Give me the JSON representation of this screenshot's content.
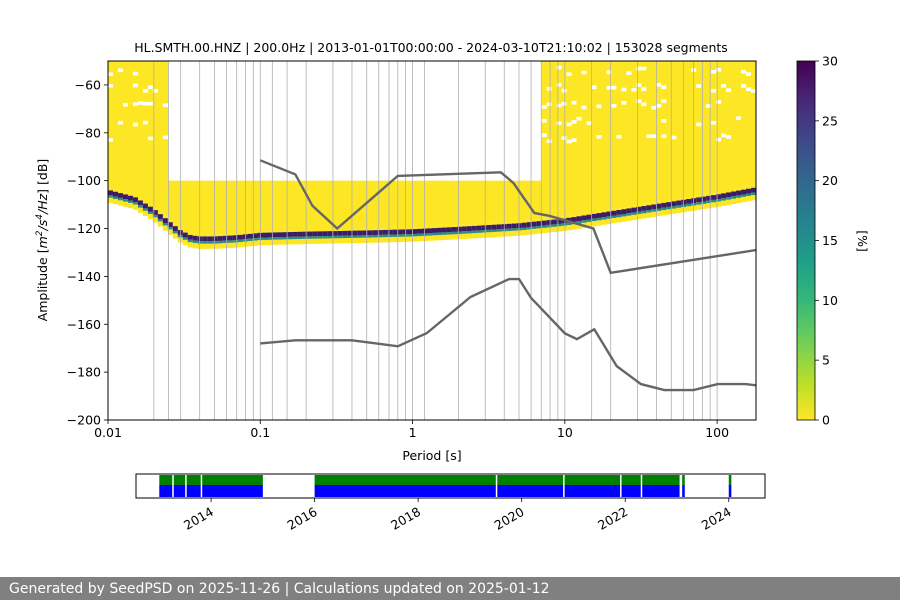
{
  "chart_data": {
    "type": "heatmap",
    "title": "HL.SMTH.00.HNZ | 200.0Hz | 2013-01-01T00:00:00 - 2024-03-10T21:10:02 | 153028 segments",
    "xlabel": "Period [s]",
    "ylabel_prefix": "Amplitude [",
    "ylabel_suffix": "] [dB]",
    "x_scale": "log",
    "xlim": [
      0.01,
      180
    ],
    "ylim": [
      -200,
      -50
    ],
    "x_ticks": [
      0.01,
      0.1,
      1,
      10,
      100
    ],
    "x_tick_labels": [
      "0.01",
      "0.1",
      "1",
      "10",
      "100"
    ],
    "y_ticks": [
      -200,
      -180,
      -160,
      -140,
      -120,
      -100,
      -80,
      -60
    ],
    "y_tick_labels": [
      "−200",
      "−180",
      "−160",
      "−140",
      "−120",
      "−100",
      "−80",
      "−60"
    ],
    "grid_periods": [
      0.02,
      0.025,
      0.03,
      0.04,
      0.05,
      0.06,
      0.07,
      0.08,
      0.09,
      0.1,
      0.12,
      0.15,
      0.2,
      0.3,
      0.4,
      0.5,
      0.6,
      0.7,
      0.8,
      0.9,
      1,
      1.2,
      2,
      3,
      4,
      5,
      6,
      7,
      8,
      9,
      10,
      15,
      20,
      30,
      40,
      50,
      60,
      70,
      80,
      90,
      100
    ],
    "psd_mode": {
      "periods": [
        0.01,
        0.015,
        0.02,
        0.025,
        0.03,
        0.035,
        0.04,
        0.05,
        0.07,
        0.1,
        0.2,
        0.5,
        1,
        2,
        5,
        10,
        20,
        50,
        100,
        180
      ],
      "db": [
        -105,
        -108,
        -113,
        -118,
        -122,
        -124,
        -124.5,
        -124.5,
        -124,
        -123,
        -122.5,
        -122,
        -121.5,
        -120.5,
        -119,
        -117,
        -114,
        -110,
        -107,
        -104
      ]
    },
    "nhnm": {
      "periods": [
        0.1,
        0.17,
        0.22,
        0.32,
        0.8,
        3.8,
        4.6,
        6.3,
        7.9,
        15.4,
        20,
        180
      ],
      "db": [
        -91.5,
        -97.4,
        -110.5,
        -120,
        -98,
        -96.5,
        -101,
        -113.5,
        -114.7,
        -120,
        -138.5,
        -129
      ]
    },
    "nlnm": {
      "periods": [
        0.1,
        0.17,
        0.4,
        0.8,
        1.24,
        2.4,
        4.3,
        5,
        6,
        10,
        12,
        15.6,
        21.9,
        31.6,
        45,
        70,
        101,
        154,
        180
      ],
      "db": [
        -168,
        -166.7,
        -166.7,
        -169.2,
        -163.7,
        -148.6,
        -141.1,
        -141.1,
        -149,
        -163.8,
        -166.2,
        -162.1,
        -177.5,
        -185,
        -187.5,
        -187.5,
        -185,
        -185,
        -185.5
      ]
    },
    "colorbar": {
      "label": "[%]",
      "ticks": [
        0,
        5,
        10,
        15,
        20,
        25,
        30
      ],
      "tick_labels": [
        "0",
        "5",
        "10",
        "15",
        "20",
        "25",
        "30"
      ],
      "colors": [
        "#fde725",
        "#b5de2b",
        "#6ece58",
        "#35b779",
        "#1f9e89",
        "#26828e",
        "#31688e",
        "#3e4989",
        "#482878",
        "#440154"
      ]
    },
    "availability": {
      "years": [
        2014,
        2016,
        2018,
        2020,
        2022,
        2024
      ],
      "year_labels": [
        "2014",
        "2016",
        "2018",
        "2020",
        "2022",
        "2024"
      ],
      "xlim": [
        2012.55,
        2024.7
      ],
      "data_spans": [
        [
          2013.0,
          2015.0
        ],
        [
          2016.0,
          2023.05
        ],
        [
          2023.1,
          2023.15
        ],
        [
          2024.0,
          2024.05
        ]
      ],
      "gaps": [
        2013.25,
        2013.5,
        2013.8,
        2019.5,
        2020.8,
        2021.9,
        2022.3
      ],
      "colors": {
        "psd": "#0000ff",
        "data": "#008000"
      }
    }
  },
  "footer": {
    "text": "Generated by SeedPSD on 2025-11-26 | Calculations updated on 2025-01-12"
  }
}
